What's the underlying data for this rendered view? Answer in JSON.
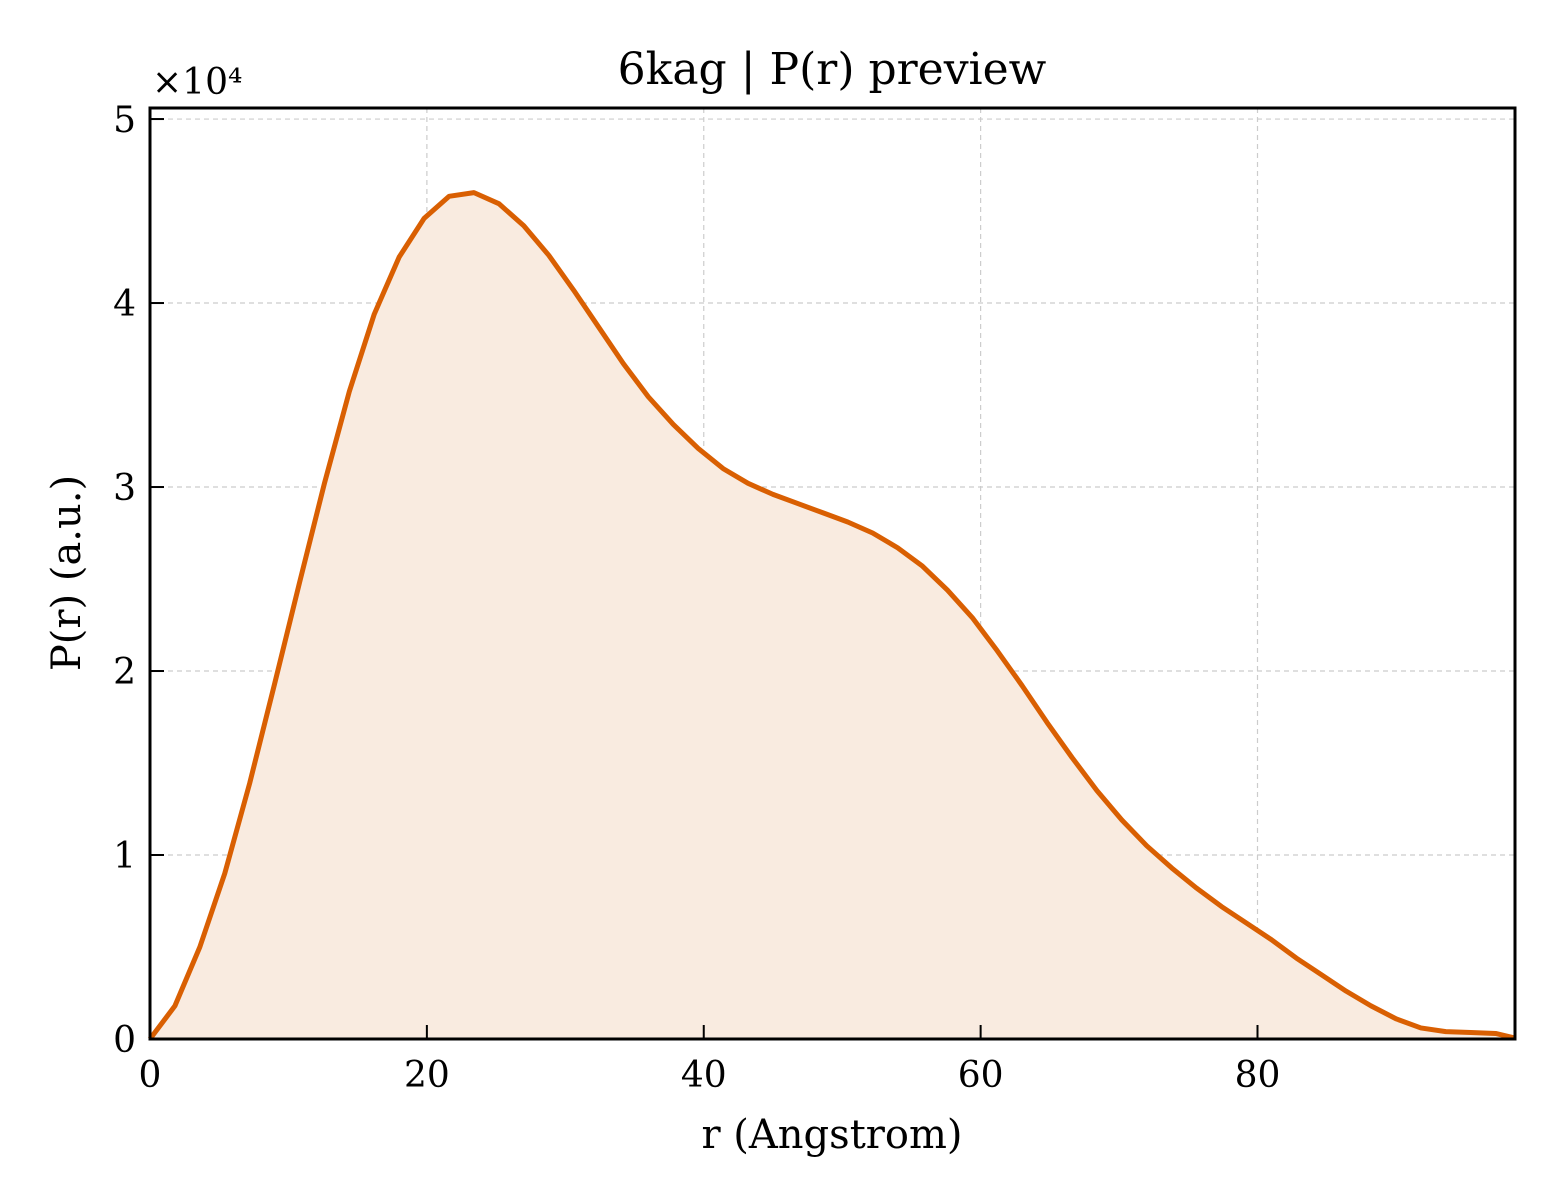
{
  "chart_data": {
    "type": "area",
    "title": "6kag | P(r) preview",
    "xlabel": "r (Angstrom)",
    "ylabel": "P(r) (a.u.)",
    "y_multiplier_label": "×10⁴",
    "xlim": [
      0,
      98.6
    ],
    "ylim": [
      0,
      5.06
    ],
    "x_ticks": [
      0,
      20,
      40,
      60,
      80
    ],
    "x_tick_labels": [
      "0",
      "20",
      "40",
      "60",
      "80"
    ],
    "y_ticks": [
      0,
      1,
      2,
      3,
      4,
      5
    ],
    "y_tick_labels": [
      "0",
      "1",
      "2",
      "3",
      "4",
      "5"
    ],
    "grid": true,
    "legend": "none",
    "line_color": "#d95f02",
    "fill_color": "#f9ebe0",
    "series": [
      {
        "x": [
          0,
          1.8,
          3.6,
          5.4,
          7.2,
          9.0,
          10.8,
          12.6,
          14.4,
          16.2,
          18.0,
          19.8,
          21.6,
          23.4,
          25.2,
          27.0,
          28.8,
          30.6,
          32.4,
          34.2,
          36.0,
          37.8,
          39.6,
          41.4,
          43.2,
          45.0,
          46.8,
          48.6,
          50.4,
          52.2,
          54.0,
          55.8,
          57.6,
          59.4,
          61.2,
          63.0,
          64.8,
          66.6,
          68.4,
          70.2,
          72.0,
          73.8,
          75.6,
          77.4,
          79.2,
          81.0,
          82.8,
          84.6,
          86.4,
          88.2,
          90.0,
          91.8,
          93.6,
          95.4,
          97.2,
          98.6
        ],
        "y": [
          0,
          0.18,
          0.5,
          0.9,
          1.39,
          1.93,
          2.48,
          3.02,
          3.52,
          3.94,
          4.25,
          4.46,
          4.58,
          4.6,
          4.54,
          4.42,
          4.26,
          4.07,
          3.87,
          3.67,
          3.49,
          3.34,
          3.21,
          3.1,
          3.02,
          2.96,
          2.91,
          2.86,
          2.81,
          2.75,
          2.67,
          2.57,
          2.44,
          2.29,
          2.11,
          1.92,
          1.72,
          1.53,
          1.35,
          1.19,
          1.05,
          0.93,
          0.82,
          0.72,
          0.63,
          0.54,
          0.44,
          0.35,
          0.26,
          0.18,
          0.11,
          0.06,
          0.04,
          0.035,
          0.03,
          0.005
        ]
      }
    ]
  }
}
